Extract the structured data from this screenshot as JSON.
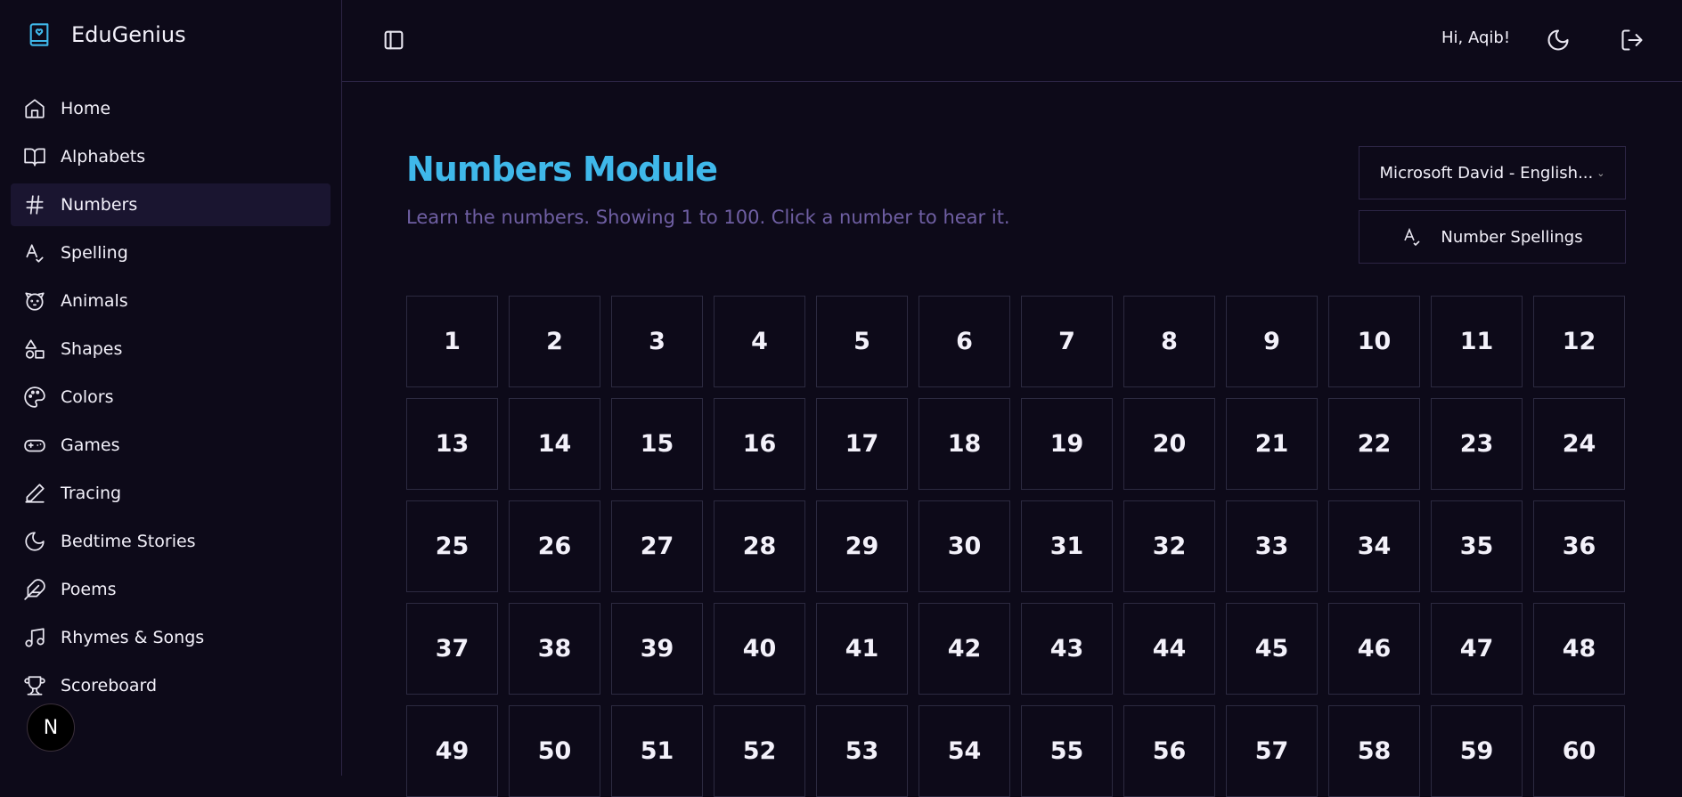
{
  "brand": {
    "name": "EduGenius",
    "accent": "#3fb8ea"
  },
  "sidebar": {
    "items": [
      {
        "label": "Home",
        "icon": "home-icon"
      },
      {
        "label": "Alphabets",
        "icon": "book-open-icon"
      },
      {
        "label": "Numbers",
        "icon": "hash-icon",
        "active": true
      },
      {
        "label": "Spelling",
        "icon": "spell-check-icon"
      },
      {
        "label": "Animals",
        "icon": "dog-icon"
      },
      {
        "label": "Shapes",
        "icon": "shapes-icon"
      },
      {
        "label": "Colors",
        "icon": "palette-icon"
      },
      {
        "label": "Games",
        "icon": "gamepad-icon"
      },
      {
        "label": "Tracing",
        "icon": "pencil-icon"
      },
      {
        "label": "Bedtime Stories",
        "icon": "moon-icon"
      },
      {
        "label": "Poems",
        "icon": "feather-icon"
      },
      {
        "label": "Rhymes & Songs",
        "icon": "music-icon"
      },
      {
        "label": "Scoreboard",
        "icon": "trophy-icon"
      }
    ],
    "badge": "N"
  },
  "header": {
    "greeting": "Hi, Aqib!"
  },
  "main": {
    "title": "Numbers Module",
    "subtitle": "Learn the numbers. Showing 1 to 100. Click a number to hear it.",
    "voice_select": "Microsoft David - English...",
    "spellings_button": "Number Spellings",
    "numbers": [
      1,
      2,
      3,
      4,
      5,
      6,
      7,
      8,
      9,
      10,
      11,
      12,
      13,
      14,
      15,
      16,
      17,
      18,
      19,
      20,
      21,
      22,
      23,
      24,
      25,
      26,
      27,
      28,
      29,
      30,
      31,
      32,
      33,
      34,
      35,
      36,
      37,
      38,
      39,
      40,
      41,
      42,
      43,
      44,
      45,
      46,
      47,
      48,
      49,
      50,
      51,
      52,
      53,
      54,
      55,
      56,
      57,
      58,
      59,
      60
    ]
  }
}
